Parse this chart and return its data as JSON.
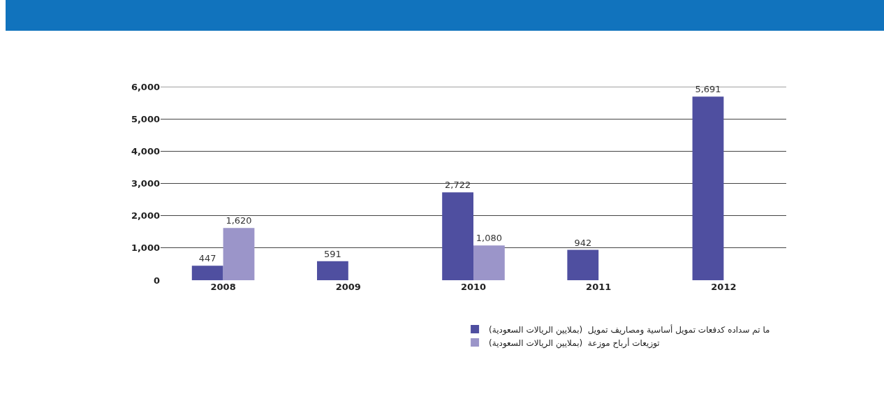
{
  "chart_data": {
    "type": "bar",
    "categories": [
      "2008",
      "2009",
      "2010",
      "2011",
      "2012"
    ],
    "series": [
      {
        "name": "ما تم سداده كدفعات تمويل أساسية ومصاريف تمويل  (بملايين الريالات السعودية)",
        "color": "#4f4fa0",
        "values": [
          447,
          591,
          2722,
          942,
          5691
        ],
        "value_labels": [
          "447",
          "591",
          "2,722",
          "942",
          "5,691"
        ]
      },
      {
        "name": "توزيعات أرباح موزعة  (بملايين الريالات السعودية)",
        "color": "#9b95c9",
        "values": [
          1620,
          null,
          1080,
          null,
          null
        ],
        "value_labels": [
          "1,620",
          null,
          "1,080",
          null,
          null
        ]
      }
    ],
    "ylim": [
      0,
      6000
    ],
    "yticks": [
      {
        "value": 0,
        "label": "0"
      },
      {
        "value": 1000,
        "label": "1,000"
      },
      {
        "value": 2000,
        "label": "2,000"
      },
      {
        "value": 3000,
        "label": "3,000"
      },
      {
        "value": 4000,
        "label": "4,000"
      },
      {
        "value": 5000,
        "label": "5,000"
      },
      {
        "value": 6000,
        "label": "6,000"
      }
    ],
    "grid": "y",
    "legend": "bottom right"
  }
}
